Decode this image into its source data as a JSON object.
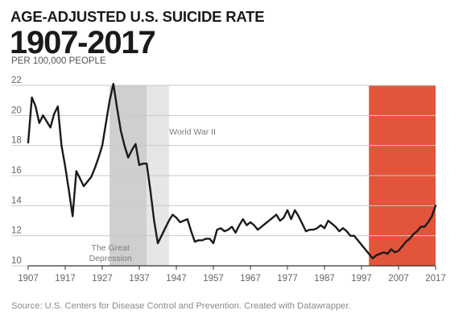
{
  "header": {
    "title": "AGE-ADJUSTED U.S. SUICIDE RATE",
    "years": "1907-2017",
    "subtitle": "PER 100,000 PEOPLE"
  },
  "source": "Source: U.S. Centers for Disease Control and Prevention. Created with Datawrapper.",
  "colors": {
    "line": "#1a1a1a",
    "great_depression": "#cfcfcf",
    "world_war_ii": "#e6e6e6",
    "highlight": "#e2553a",
    "grid": "#c8c8c8"
  },
  "chart_data": {
    "type": "line",
    "xlim": [
      1907,
      2017
    ],
    "ylim": [
      10,
      22
    ],
    "x_ticks": [
      1907,
      1917,
      1927,
      1937,
      1947,
      1957,
      1967,
      1977,
      1987,
      1997,
      2007,
      2017
    ],
    "x_tick_labels": [
      "1907",
      "1917",
      "1927",
      "1937",
      "1947",
      "1957",
      "1967",
      "1977",
      "1987",
      "1997",
      "2007",
      "2017"
    ],
    "y_ticks": [
      10,
      12,
      14,
      16,
      18,
      20,
      22
    ],
    "y_tick_labels": [
      "10",
      "12",
      "14",
      "16",
      "18",
      "20",
      "22"
    ],
    "grid": "horizontal",
    "series": [
      {
        "values": [
          [
            1907,
            18.2
          ],
          [
            1908,
            21.2
          ],
          [
            1909,
            20.6
          ],
          [
            1910,
            19.5
          ],
          [
            1911,
            20.0
          ],
          [
            1912,
            19.6
          ],
          [
            1913,
            19.2
          ],
          [
            1914,
            20.1
          ],
          [
            1915,
            20.6
          ],
          [
            1916,
            18.0
          ],
          [
            1917,
            16.6
          ],
          [
            1918,
            15.0
          ],
          [
            1919,
            13.3
          ],
          [
            1920,
            16.3
          ],
          [
            1921,
            15.8
          ],
          [
            1922,
            15.3
          ],
          [
            1923,
            15.6
          ],
          [
            1924,
            15.9
          ],
          [
            1925,
            16.5
          ],
          [
            1926,
            17.2
          ],
          [
            1927,
            18.0
          ],
          [
            1928,
            19.5
          ],
          [
            1929,
            21.0
          ],
          [
            1930,
            22.1
          ],
          [
            1931,
            20.5
          ],
          [
            1932,
            19.0
          ],
          [
            1933,
            18.0
          ],
          [
            1934,
            17.2
          ],
          [
            1935,
            17.7
          ],
          [
            1936,
            18.1
          ],
          [
            1937,
            16.7
          ],
          [
            1938,
            16.8
          ],
          [
            1939,
            16.8
          ],
          [
            1940,
            15.0
          ],
          [
            1941,
            13.0
          ],
          [
            1942,
            11.5
          ],
          [
            1943,
            12.0
          ],
          [
            1944,
            12.5
          ],
          [
            1945,
            13.0
          ],
          [
            1946,
            13.4
          ],
          [
            1947,
            13.2
          ],
          [
            1948,
            12.9
          ],
          [
            1949,
            13.0
          ],
          [
            1950,
            13.1
          ],
          [
            1951,
            12.3
          ],
          [
            1952,
            11.6
          ],
          [
            1953,
            11.7
          ],
          [
            1954,
            11.7
          ],
          [
            1955,
            11.8
          ],
          [
            1956,
            11.8
          ],
          [
            1957,
            11.5
          ],
          [
            1958,
            12.4
          ],
          [
            1959,
            12.5
          ],
          [
            1960,
            12.3
          ],
          [
            1961,
            12.4
          ],
          [
            1962,
            12.6
          ],
          [
            1963,
            12.2
          ],
          [
            1964,
            12.7
          ],
          [
            1965,
            13.1
          ],
          [
            1966,
            12.7
          ],
          [
            1967,
            12.9
          ],
          [
            1968,
            12.7
          ],
          [
            1969,
            12.4
          ],
          [
            1970,
            12.6
          ],
          [
            1971,
            12.8
          ],
          [
            1972,
            13.0
          ],
          [
            1973,
            13.2
          ],
          [
            1974,
            13.4
          ],
          [
            1975,
            13.0
          ],
          [
            1976,
            13.2
          ],
          [
            1977,
            13.7
          ],
          [
            1978,
            13.1
          ],
          [
            1979,
            13.7
          ],
          [
            1980,
            13.3
          ],
          [
            1981,
            12.8
          ],
          [
            1982,
            12.3
          ],
          [
            1983,
            12.4
          ],
          [
            1984,
            12.4
          ],
          [
            1985,
            12.5
          ],
          [
            1986,
            12.7
          ],
          [
            1987,
            12.5
          ],
          [
            1988,
            13.0
          ],
          [
            1989,
            12.8
          ],
          [
            1990,
            12.6
          ],
          [
            1991,
            12.3
          ],
          [
            1992,
            12.5
          ],
          [
            1993,
            12.3
          ],
          [
            1994,
            12.0
          ],
          [
            1995,
            12.0
          ],
          [
            1996,
            11.7
          ],
          [
            1997,
            11.4
          ],
          [
            1998,
            11.1
          ],
          [
            1999,
            10.8
          ],
          [
            2000,
            10.5
          ],
          [
            2001,
            10.7
          ],
          [
            2002,
            10.8
          ],
          [
            2003,
            10.9
          ],
          [
            2004,
            10.8
          ],
          [
            2005,
            11.1
          ],
          [
            2006,
            10.9
          ],
          [
            2007,
            11.0
          ],
          [
            2008,
            11.3
          ],
          [
            2009,
            11.6
          ],
          [
            2010,
            11.8
          ],
          [
            2011,
            12.1
          ],
          [
            2012,
            12.3
          ],
          [
            2013,
            12.6
          ],
          [
            2014,
            12.6
          ],
          [
            2015,
            12.9
          ],
          [
            2016,
            13.3
          ],
          [
            2017,
            14.0
          ]
        ]
      }
    ],
    "bands": [
      {
        "from": 1929,
        "to": 1939,
        "label": "The Great Depression",
        "label_lines": [
          "The Great",
          "Depression"
        ],
        "color_key": "great_depression"
      },
      {
        "from": 1939,
        "to": 1945,
        "label": "World War II",
        "label_lines": [
          "World War II"
        ],
        "color_key": "world_war_ii"
      },
      {
        "from": 1999,
        "to": 2017,
        "label": "",
        "label_lines": [],
        "color_key": "highlight"
      }
    ]
  }
}
